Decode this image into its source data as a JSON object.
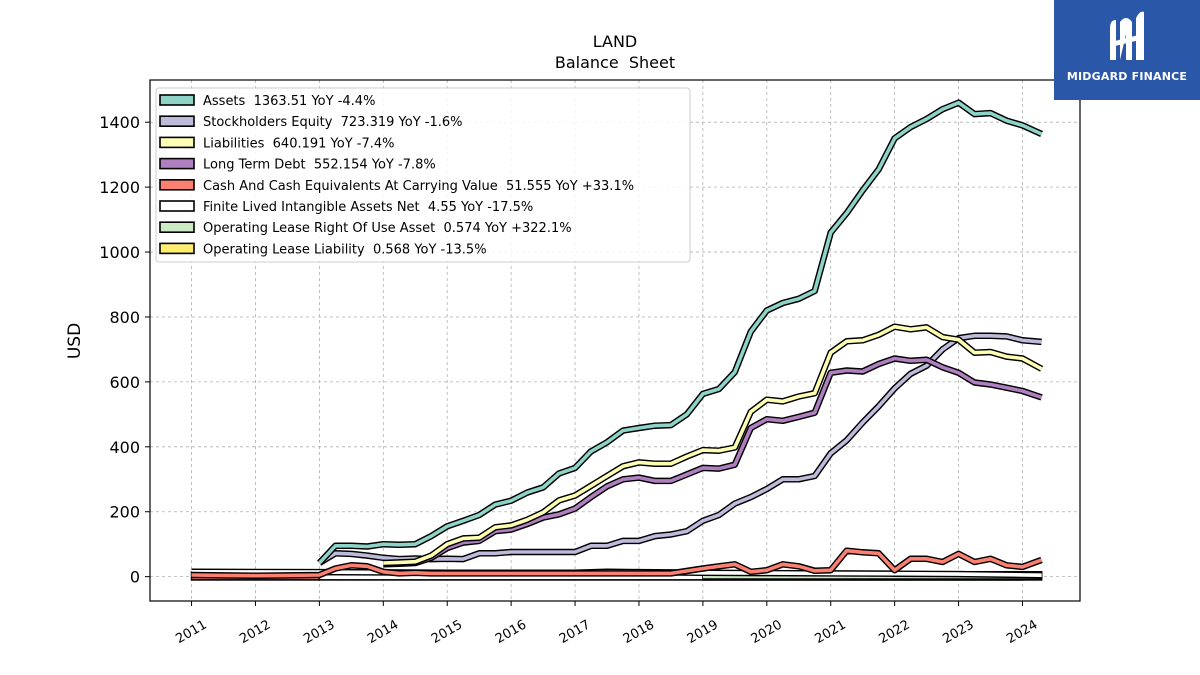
{
  "brand": {
    "name": "MIDGARD FINANCE",
    "logo_icon": "mh-monogram-icon",
    "color": "#2b57a8"
  },
  "chart_data": {
    "type": "line",
    "title": "LAND",
    "subtitle": "Balance  Sheet",
    "ylabel": "USD",
    "xlabel": "",
    "ylim": [
      -75,
      1530
    ],
    "xlim": [
      2010.35,
      2024.9
    ],
    "yticks": [
      0,
      200,
      400,
      600,
      800,
      1000,
      1200,
      1400
    ],
    "xticks": [
      "2011",
      "2012",
      "2013",
      "2014",
      "2015",
      "2016",
      "2017",
      "2018",
      "2019",
      "2020",
      "2021",
      "2022",
      "2023",
      "2024"
    ],
    "grid": true,
    "legend_position": "top-left",
    "series": [
      {
        "name": "Assets",
        "legend": "Assets  1363.51 YoY -4.4%",
        "color": "#8dd3c7",
        "x": [
          2013.0,
          2013.25,
          2013.5,
          2013.75,
          2014.0,
          2014.25,
          2014.5,
          2014.75,
          2015.0,
          2015.25,
          2015.5,
          2015.75,
          2016.0,
          2016.25,
          2016.5,
          2016.75,
          2017.0,
          2017.25,
          2017.5,
          2017.75,
          2018.0,
          2018.25,
          2018.5,
          2018.75,
          2019.0,
          2019.25,
          2019.5,
          2019.75,
          2020.0,
          2020.25,
          2020.5,
          2020.75,
          2021.0,
          2021.25,
          2021.5,
          2021.75,
          2022.0,
          2022.25,
          2022.5,
          2022.75,
          2023.0,
          2023.25,
          2023.5,
          2023.75,
          2024.0,
          2024.3
        ],
        "y": [
          42,
          95,
          95,
          93,
          100,
          98,
          100,
          125,
          155,
          172,
          190,
          222,
          234,
          259,
          275,
          318,
          335,
          386,
          414,
          450,
          458,
          465,
          467,
          500,
          563,
          578,
          630,
          755,
          820,
          843,
          856,
          880,
          1060,
          1120,
          1190,
          1255,
          1350,
          1385,
          1410,
          1440,
          1460,
          1425,
          1428,
          1405,
          1390,
          1363.51
        ]
      },
      {
        "name": "Stockholders Equity",
        "legend": "Stockholders Equity  723.319 YoY -1.6%",
        "color": "#bebada",
        "x": [
          2013.0,
          2013.25,
          2013.5,
          2013.75,
          2014.0,
          2014.25,
          2014.5,
          2014.75,
          2015.0,
          2015.25,
          2015.5,
          2015.75,
          2016.0,
          2016.25,
          2016.5,
          2016.75,
          2017.0,
          2017.25,
          2017.5,
          2017.75,
          2018.0,
          2018.25,
          2018.5,
          2018.75,
          2019.0,
          2019.25,
          2019.5,
          2019.75,
          2020.0,
          2020.25,
          2020.5,
          2020.75,
          2021.0,
          2021.25,
          2021.5,
          2021.75,
          2022.0,
          2022.25,
          2022.5,
          2022.75,
          2023.0,
          2023.25,
          2023.5,
          2023.75,
          2024.0,
          2024.3
        ],
        "y": [
          42,
          72,
          70,
          65,
          58,
          54,
          56,
          54,
          55,
          54,
          72,
          72,
          76,
          76,
          76,
          76,
          76,
          95,
          95,
          110,
          110,
          125,
          130,
          140,
          172,
          190,
          225,
          245,
          270,
          300,
          300,
          310,
          380,
          420,
          475,
          525,
          580,
          625,
          650,
          700,
          735,
          742,
          742,
          740,
          728,
          723.319
        ]
      },
      {
        "name": "Liabilities",
        "legend": "Liabilities  640.191 YoY -7.4%",
        "color": "#ffffb3",
        "x": [
          2014.0,
          2014.25,
          2014.5,
          2014.75,
          2015.0,
          2015.25,
          2015.5,
          2015.75,
          2016.0,
          2016.25,
          2016.5,
          2016.75,
          2017.0,
          2017.25,
          2017.5,
          2017.75,
          2018.0,
          2018.25,
          2018.5,
          2018.75,
          2019.0,
          2019.25,
          2019.5,
          2019.75,
          2020.0,
          2020.25,
          2020.5,
          2020.75,
          2021.0,
          2021.25,
          2021.5,
          2021.75,
          2022.0,
          2022.25,
          2022.5,
          2022.75,
          2023.0,
          2023.25,
          2023.5,
          2023.75,
          2024.0,
          2024.3
        ],
        "y": [
          42,
          44,
          46,
          65,
          100,
          118,
          120,
          152,
          158,
          175,
          198,
          235,
          250,
          280,
          310,
          340,
          352,
          348,
          348,
          370,
          390,
          388,
          398,
          508,
          545,
          540,
          555,
          565,
          690,
          725,
          728,
          745,
          770,
          762,
          768,
          738,
          730,
          690,
          692,
          678,
          672,
          640.191
        ]
      },
      {
        "name": "Long Term Debt",
        "legend": "Long Term Debt  552.154 YoY -7.8%",
        "color": "#b07fc0",
        "x": [
          2014.0,
          2014.25,
          2014.5,
          2014.75,
          2015.0,
          2015.25,
          2015.5,
          2015.75,
          2016.0,
          2016.25,
          2016.5,
          2016.75,
          2017.0,
          2017.25,
          2017.5,
          2017.75,
          2018.0,
          2018.25,
          2018.5,
          2018.75,
          2019.0,
          2019.25,
          2019.5,
          2019.75,
          2020.0,
          2020.25,
          2020.5,
          2020.75,
          2021.0,
          2021.25,
          2021.5,
          2021.75,
          2022.0,
          2022.25,
          2022.5,
          2022.75,
          2023.0,
          2023.25,
          2023.5,
          2023.75,
          2024.0,
          2024.3
        ],
        "y": [
          38,
          40,
          42,
          58,
          88,
          105,
          110,
          140,
          145,
          162,
          182,
          192,
          210,
          245,
          278,
          300,
          305,
          295,
          295,
          315,
          335,
          333,
          345,
          458,
          485,
          480,
          492,
          505,
          628,
          635,
          632,
          655,
          672,
          665,
          668,
          645,
          628,
          598,
          592,
          582,
          572,
          552.154
        ]
      },
      {
        "name": "Cash And Cash Equivalents At Carrying Value",
        "legend": "Cash And Cash Equivalents At Carrying Value  51.555 YoY +33.1%",
        "color": "#fb8072",
        "x": [
          2011.0,
          2011.5,
          2012.0,
          2012.5,
          2013.0,
          2013.25,
          2013.5,
          2013.75,
          2014.0,
          2014.25,
          2014.5,
          2014.75,
          2015.0,
          2015.5,
          2016.0,
          2016.5,
          2017.0,
          2017.5,
          2018.0,
          2018.5,
          2019.0,
          2019.25,
          2019.5,
          2019.75,
          2020.0,
          2020.25,
          2020.5,
          2020.75,
          2021.0,
          2021.25,
          2021.5,
          2021.75,
          2022.0,
          2022.25,
          2022.5,
          2022.75,
          2023.0,
          2023.25,
          2023.5,
          2023.75,
          2024.0,
          2024.3
        ],
        "y": [
          5,
          4,
          3,
          4,
          5,
          25,
          35,
          32,
          15,
          10,
          12,
          10,
          10,
          10,
          10,
          10,
          10,
          10,
          10,
          10,
          25,
          32,
          38,
          15,
          20,
          38,
          32,
          18,
          20,
          80,
          75,
          72,
          20,
          55,
          55,
          45,
          70,
          45,
          55,
          35,
          30,
          51.555
        ]
      },
      {
        "name": "Finite Lived Intangible Assets Net",
        "legend": "Finite Lived Intangible Assets Net  4.55 YoY -17.5%",
        "color": "#ffffff",
        "x": [
          2011.0,
          2013.0,
          2014.0,
          2015.0,
          2016.0,
          2017.0,
          2017.5,
          2018.0,
          2018.5,
          2019.0,
          2020.0,
          2021.0,
          2022.0,
          2023.0,
          2024.0,
          2024.3
        ],
        "y": [
          15,
          14,
          13,
          12,
          12,
          12,
          15,
          14,
          13,
          12,
          11,
          10,
          9,
          8,
          5.5,
          4.55
        ]
      },
      {
        "name": "Operating Lease Right Of Use Asset",
        "legend": "Operating Lease Right Of Use Asset  0.574 YoY +322.1%",
        "color": "#ccebc5",
        "x": [
          2019.0,
          2020.0,
          2021.0,
          2022.0,
          2023.0,
          2024.0,
          2024.3
        ],
        "y": [
          0.5,
          0.5,
          0.6,
          0.5,
          0.4,
          0.4,
          0.574
        ]
      },
      {
        "name": "Operating Lease Liability",
        "legend": "Operating Lease Liability  0.568 YoY -13.5%",
        "color": "#ffed6f",
        "x": [
          2019.0,
          2020.0,
          2021.0,
          2022.0,
          2023.0,
          2024.0
        ],
        "y": [
          0.6,
          0.6,
          0.6,
          0.6,
          0.6,
          0.568
        ]
      }
    ],
    "bars": [
      {
        "series": "Cash And Cash Equivalents At Carrying Value",
        "x0": 2011.0,
        "x1": 2013.0,
        "y0": -10,
        "y1": 15,
        "color": "#fb8072"
      },
      {
        "series": "Finite Lived Intangible Assets Net",
        "x0": 2013.0,
        "x1": 2024.3,
        "y0": -10,
        "y1": 15,
        "color": "#ffffff"
      },
      {
        "series": "Operating Lease Liability",
        "x0": 2019.0,
        "x1": 2024.0,
        "y0": -10,
        "y1": 15,
        "color": "#ffed6f"
      }
    ]
  }
}
